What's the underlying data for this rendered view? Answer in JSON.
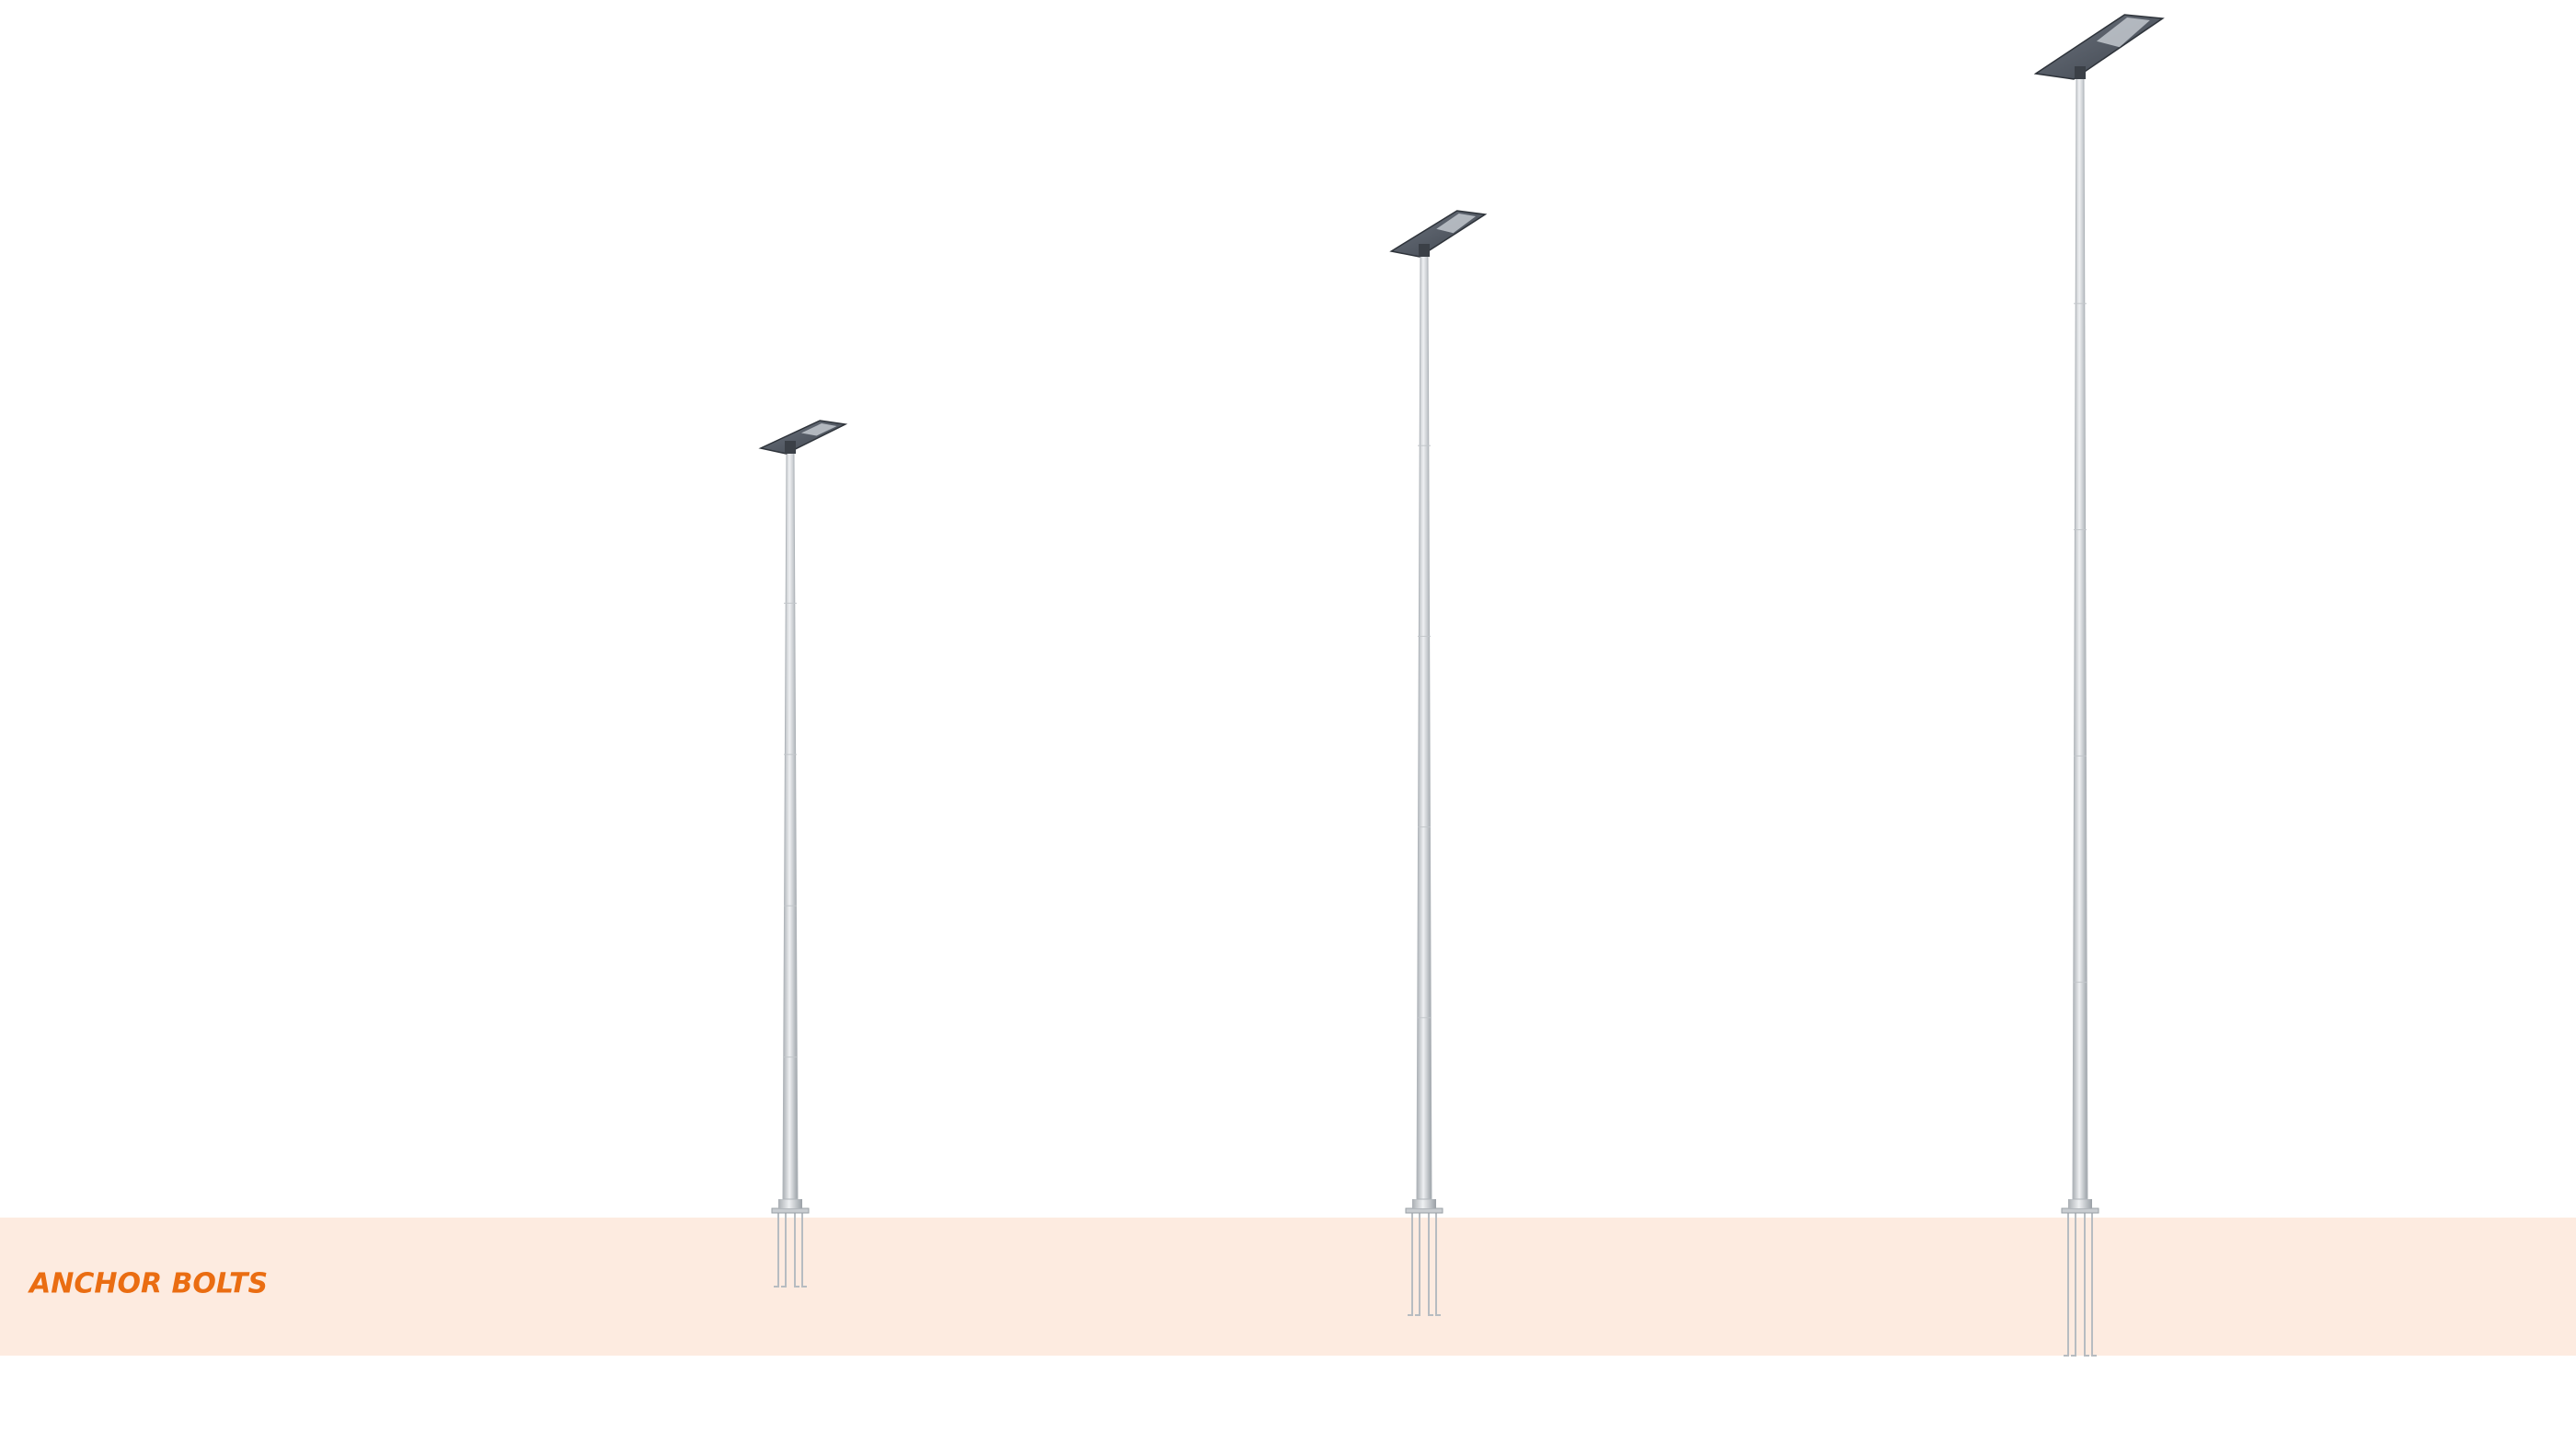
{
  "ground": {
    "label": "ANCHOR BOLTS"
  }
}
